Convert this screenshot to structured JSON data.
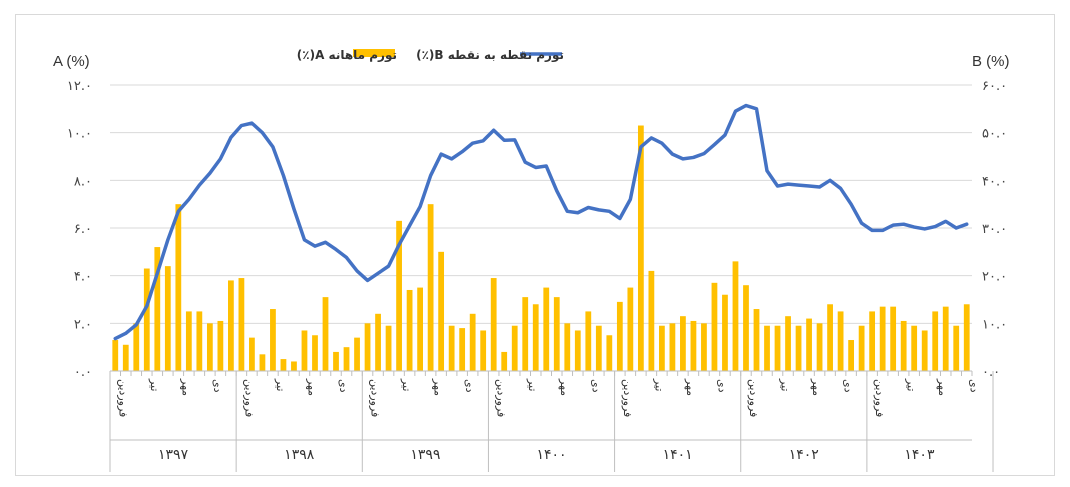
{
  "chart_data": {
    "type": "bar+line",
    "title": "",
    "left_axis": {
      "label": "A (%)",
      "ylim": [
        0,
        12
      ],
      "ticks": [
        "۰.۰",
        "۲.۰",
        "۴.۰",
        "۶.۰",
        "۸.۰",
        "۱۰.۰",
        "۱۲.۰"
      ]
    },
    "right_axis": {
      "label": "B (%)",
      "ylim": [
        0,
        60
      ],
      "ticks": [
        "۰.۰",
        "۱۰.۰",
        "۲۰.۰",
        "۳۰.۰",
        "۴۰.۰",
        "۵۰.۰",
        "۶۰.۰"
      ]
    },
    "legend": {
      "placement": "top-center",
      "series_a": "تورم ماهانه A(٪)",
      "series_b": "تورم نقطه به نقطه B(٪)"
    },
    "colors": {
      "bar": "#FFC000",
      "line": "#4472C4",
      "grid": "#d9d9d9"
    },
    "month_labels": [
      "فروردین",
      "تیر",
      "مهر",
      "دی"
    ],
    "years": [
      "۱۳۹۷",
      "۱۳۹۸",
      "۱۳۹۹",
      "۱۴۰۰",
      "۱۴۰۱",
      "۱۴۰۲",
      "۱۴۰۳"
    ],
    "monthly_inflation_A": [
      1.3,
      1.1,
      2.0,
      4.3,
      5.2,
      4.4,
      7.0,
      2.5,
      2.5,
      2.0,
      2.1,
      3.8,
      3.9,
      1.4,
      0.7,
      2.6,
      0.5,
      0.4,
      1.7,
      1.5,
      3.1,
      0.8,
      1.0,
      1.4,
      2.0,
      2.4,
      1.9,
      6.3,
      3.4,
      3.5,
      7.0,
      5.0,
      1.9,
      1.8,
      2.4,
      1.7,
      3.9,
      0.8,
      1.9,
      3.1,
      2.8,
      3.5,
      3.1,
      2.0,
      1.7,
      2.5,
      1.9,
      1.5,
      2.9,
      3.5,
      10.3,
      4.2,
      1.9,
      2.0,
      2.3,
      2.1,
      2.0,
      3.7,
      3.2,
      4.6,
      3.6,
      2.6,
      1.9,
      1.9,
      2.3,
      1.9,
      2.2,
      2.0,
      2.8,
      2.5,
      1.3,
      1.9,
      2.5,
      2.7,
      2.7,
      2.1,
      1.9,
      1.7,
      2.5,
      2.7,
      1.9,
      2.8
    ],
    "point_to_point_inflation_B": [
      6.8,
      7.9,
      9.7,
      13.6,
      20.5,
      27.5,
      33.5,
      36.0,
      39.0,
      41.5,
      44.5,
      49.0,
      51.5,
      52.0,
      50.0,
      47.0,
      41.0,
      34.0,
      27.5,
      26.2,
      27.0,
      25.5,
      23.8,
      21.0,
      19.0,
      20.5,
      22.0,
      26.5,
      30.5,
      34.5,
      41.0,
      45.5,
      44.5,
      46.0,
      47.8,
      48.3,
      50.5,
      48.4,
      48.5,
      43.8,
      42.7,
      43.0,
      37.8,
      33.5,
      33.2,
      34.3,
      33.8,
      33.5,
      32.0,
      36.0,
      47.0,
      48.9,
      47.8,
      45.5,
      44.5,
      44.8,
      45.6,
      47.5,
      49.5,
      54.5,
      55.7,
      55.0,
      42.0,
      38.8,
      39.2,
      39.0,
      38.8,
      38.6,
      40.0,
      38.3,
      35.0,
      31.0,
      29.5,
      29.5,
      30.6,
      30.8,
      30.2,
      29.8,
      30.3,
      31.4,
      30.0,
      30.8
    ]
  }
}
